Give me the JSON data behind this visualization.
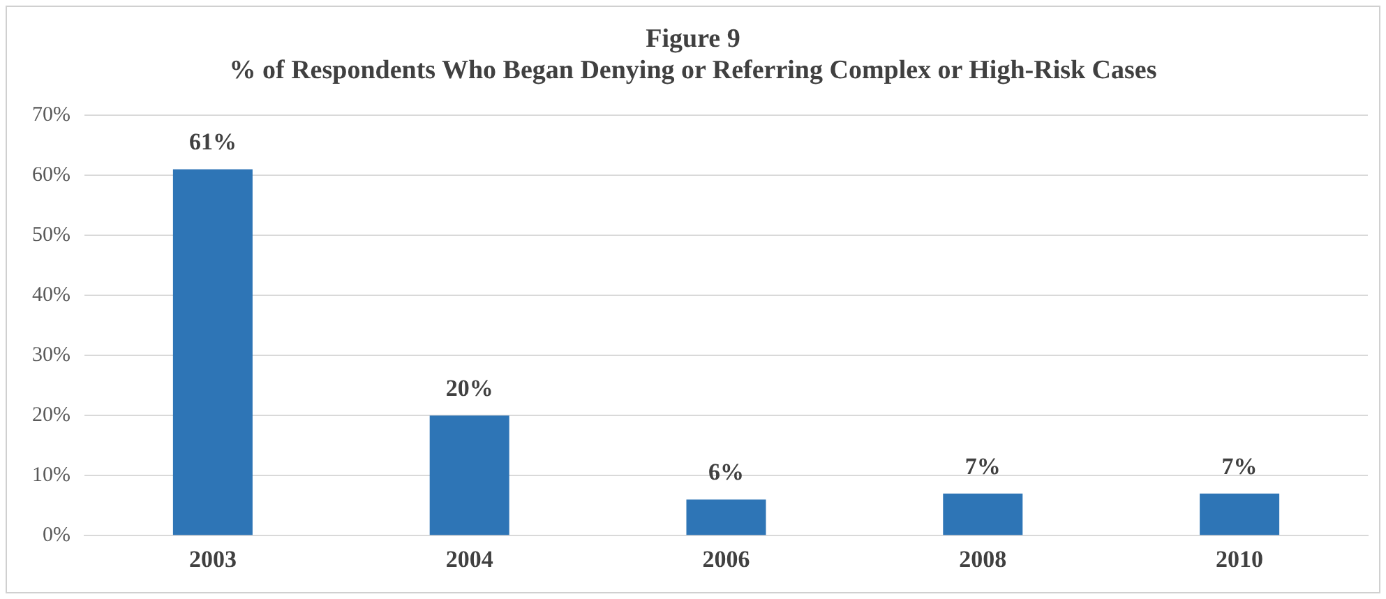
{
  "chart_data": {
    "type": "bar",
    "title": "Figure 9",
    "subtitle": "% of Respondents Who Began Denying or Referring Complex or High-Risk Cases",
    "categories": [
      "2003",
      "2004",
      "2006",
      "2008",
      "2010"
    ],
    "values": [
      61,
      20,
      6,
      7,
      7
    ],
    "color": "#2e75b6",
    "value_labels": [
      "61%",
      "20%",
      "6%",
      "7%",
      "7%"
    ],
    "ylim": [
      0,
      70
    ],
    "yticks": [
      {
        "value": 0,
        "label": "0%"
      },
      {
        "value": 10,
        "label": "10%"
      },
      {
        "value": 20,
        "label": "20%"
      },
      {
        "value": 30,
        "label": "30%"
      },
      {
        "value": 40,
        "label": "40%"
      },
      {
        "value": 50,
        "label": "50%"
      },
      {
        "value": 60,
        "label": "60%"
      },
      {
        "value": 70,
        "label": "70%"
      }
    ],
    "grid": "y",
    "legend": false
  }
}
